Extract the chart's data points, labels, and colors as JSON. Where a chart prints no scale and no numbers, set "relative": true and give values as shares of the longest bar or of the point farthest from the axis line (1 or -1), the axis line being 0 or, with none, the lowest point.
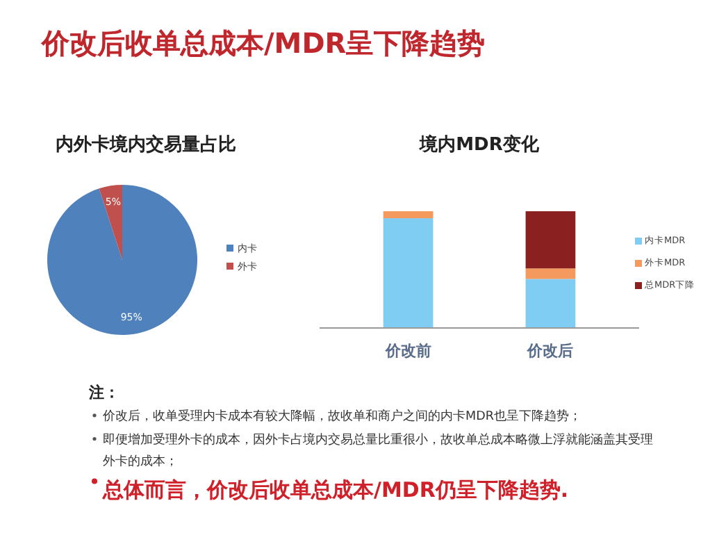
{
  "chart_data": [
    {
      "type": "other",
      "title": "价改后收单总成本/MDR呈下降趋势",
      "annotations": [
        "注：",
        "价改后，收单受理内卡成本有较大降幅，故收单和商户之间的内卡MDR也呈下降趋势；",
        "即便增加受理外卡的成本，因外卡占境内交易总量比重很小，故收单总成本略微上浮就能涵盖其受理外卡的成本；",
        "总体而言，价改后收单总成本/MDR仍呈下降趋势."
      ]
    },
    {
      "type": "pie",
      "title": "内外卡境内交易量占比",
      "categories": [
        "内卡",
        "外卡"
      ],
      "values": [
        95,
        5
      ],
      "colors": [
        "#4f81bd",
        "#c0504d"
      ],
      "value_labels": [
        "95%",
        "5%"
      ],
      "legend": "right"
    },
    {
      "type": "bar",
      "title": "境内MDR变化",
      "categories": [
        "价改前",
        "价改后"
      ],
      "stacked": true,
      "relative": true,
      "legend": "right",
      "series": [
        {
          "name": "内卡MDR",
          "color": "#7fcdf2",
          "values": [
            0.94,
            0.42
          ]
        },
        {
          "name": "外卡MDR",
          "color": "#f59a5f",
          "values": [
            0.06,
            0.09
          ]
        },
        {
          "name": "总MDR下降",
          "color": "#8b2020",
          "values": [
            0,
            0.49
          ]
        }
      ]
    }
  ]
}
